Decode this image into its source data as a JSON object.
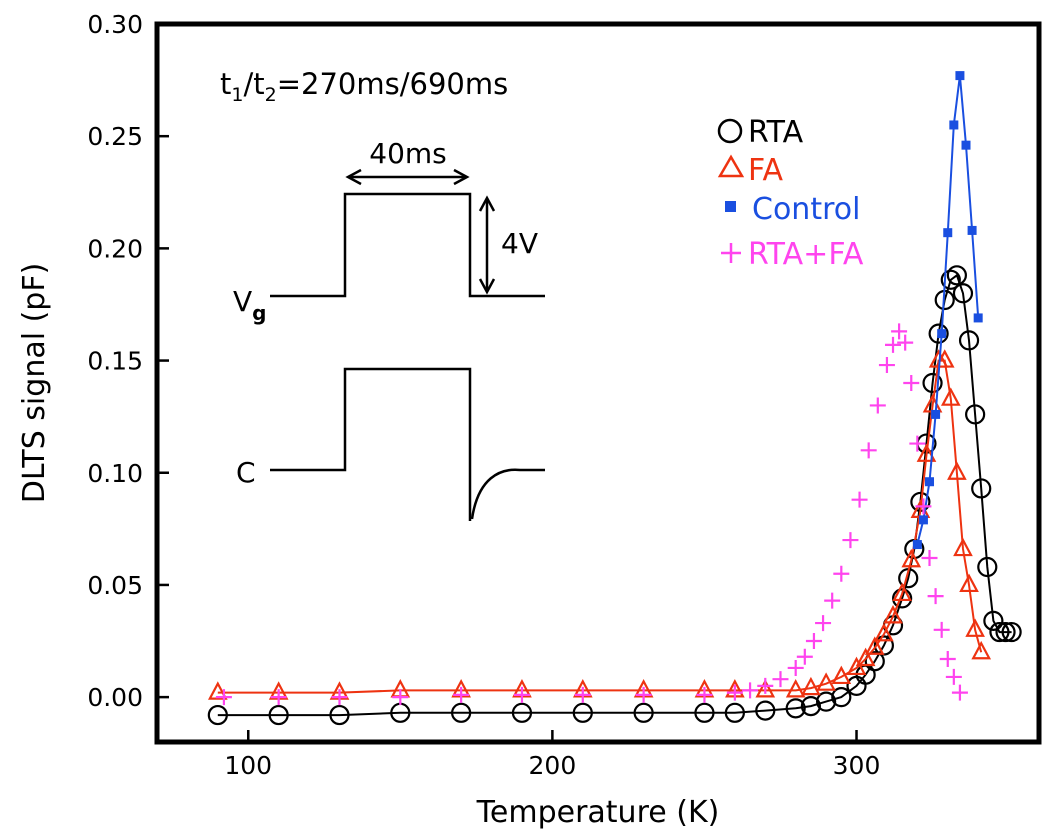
{
  "chart_data": {
    "type": "scatter",
    "xlabel": "Temperature (K)",
    "ylabel": "DLTS signal (pF)",
    "xlim": [
      70,
      360
    ],
    "ylim": [
      -0.02,
      0.3
    ],
    "xticks": [
      "100",
      "200",
      "300"
    ],
    "yticks": [
      "0.00",
      "0.05",
      "0.10",
      "0.15",
      "0.20",
      "0.25",
      "0.30"
    ],
    "legend_position": "top-right",
    "annotations": {
      "rate_window": {
        "t": "t",
        "sub1": "1",
        "slash": "/",
        "sub2": "2",
        "rest": "=270ms/690ms"
      },
      "pulse_width": "40ms",
      "pulse_height": "4V",
      "vg_main": "V",
      "vg_sub": "g",
      "c_label": "C"
    },
    "series": [
      {
        "name": "RTA",
        "color": "#000000",
        "marker": "open-circle",
        "x": [
          90,
          110,
          130,
          150,
          170,
          190,
          210,
          230,
          250,
          260,
          270,
          280,
          285,
          290,
          295,
          300,
          303,
          306,
          309,
          312,
          315,
          317,
          319,
          321,
          323,
          325,
          327,
          329,
          331,
          333,
          335,
          337,
          339,
          341,
          343,
          345,
          347,
          349,
          351
        ],
        "y": [
          -0.008,
          -0.008,
          -0.008,
          -0.007,
          -0.007,
          -0.007,
          -0.007,
          -0.007,
          -0.007,
          -0.007,
          -0.006,
          -0.005,
          -0.004,
          -0.002,
          0.0,
          0.005,
          0.01,
          0.016,
          0.023,
          0.032,
          0.044,
          0.053,
          0.066,
          0.087,
          0.113,
          0.14,
          0.162,
          0.177,
          0.186,
          0.188,
          0.18,
          0.159,
          0.126,
          0.093,
          0.058,
          0.034,
          0.029,
          0.029,
          0.029
        ]
      },
      {
        "name": "FA",
        "color": "#ee3311",
        "marker": "open-triangle",
        "x": [
          90,
          110,
          130,
          150,
          170,
          190,
          210,
          230,
          250,
          260,
          270,
          280,
          285,
          290,
          295,
          300,
          303,
          306,
          309,
          312,
          315,
          318,
          321,
          323,
          325,
          327,
          329,
          331,
          333,
          335,
          337,
          339,
          341
        ],
        "y": [
          0.002,
          0.002,
          0.002,
          0.003,
          0.003,
          0.003,
          0.003,
          0.003,
          0.003,
          0.003,
          0.003,
          0.003,
          0.004,
          0.006,
          0.009,
          0.013,
          0.017,
          0.022,
          0.028,
          0.036,
          0.046,
          0.061,
          0.083,
          0.108,
          0.13,
          0.15,
          0.15,
          0.133,
          0.1,
          0.066,
          0.05,
          0.03,
          0.02
        ]
      },
      {
        "name": "Control",
        "color": "#1a4fe0",
        "marker": "filled-square",
        "x": [
          320,
          322,
          324,
          326,
          328,
          330,
          332,
          334,
          336,
          338,
          340
        ],
        "y": [
          0.068,
          0.079,
          0.096,
          0.126,
          0.162,
          0.207,
          0.255,
          0.277,
          0.246,
          0.208,
          0.169
        ]
      },
      {
        "name": "RTA+FA",
        "color": "#ff44ee",
        "marker": "plus",
        "x": [
          92,
          110,
          130,
          150,
          170,
          190,
          210,
          230,
          250,
          260,
          265,
          270,
          275,
          280,
          283,
          286,
          289,
          292,
          295,
          298,
          301,
          304,
          307,
          310,
          312,
          314,
          316,
          318,
          320,
          322,
          324,
          326,
          328,
          330,
          332,
          334
        ],
        "y": [
          0.0,
          0.0,
          0.0,
          0.0,
          0.001,
          0.001,
          0.001,
          0.001,
          0.001,
          0.002,
          0.003,
          0.005,
          0.008,
          0.013,
          0.018,
          0.025,
          0.033,
          0.043,
          0.055,
          0.07,
          0.088,
          0.11,
          0.13,
          0.148,
          0.157,
          0.163,
          0.158,
          0.14,
          0.113,
          0.085,
          0.062,
          0.045,
          0.03,
          0.017,
          0.009,
          0.002
        ]
      }
    ]
  }
}
